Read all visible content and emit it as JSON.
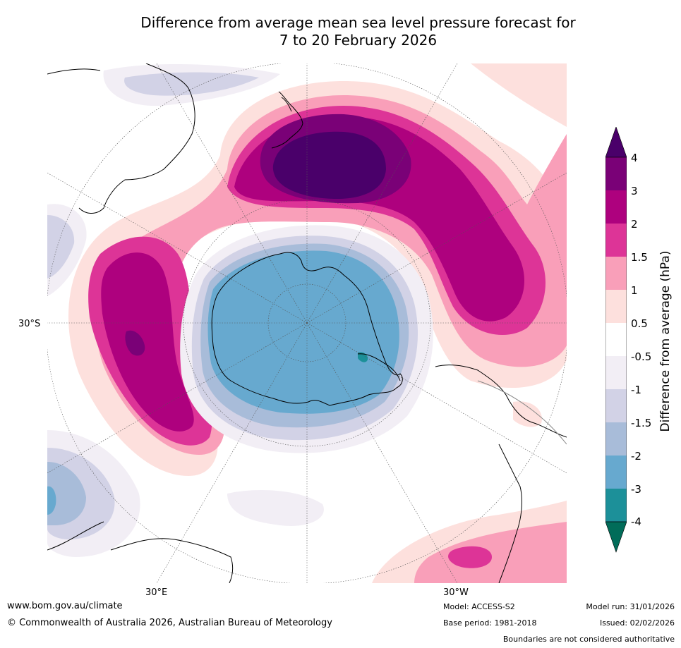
{
  "title": {
    "line1": "Difference from average mean sea level pressure forecast for",
    "line2": "7 to 20 February 2026"
  },
  "map": {
    "projection": "south-polar-stereographic",
    "lat_label": "30°S",
    "lon_labels": {
      "east": "30°E",
      "west": "30°W"
    },
    "regions": [
      {
        "name": "New Zealand high anomaly",
        "level": "above 4 hPa"
      },
      {
        "name": "Indian Ocean high anomaly",
        "level": "2 to 3 hPa"
      },
      {
        "name": "South Pacific high anomaly",
        "level": "2 to 3 hPa"
      },
      {
        "name": "Antarctic low anomaly",
        "level": "-2 to -3 hPa"
      }
    ]
  },
  "colorbar": {
    "title": "Difference from average (hPa)",
    "ticks": [
      "4",
      "3",
      "2",
      "1.5",
      "1",
      "0.5",
      "-0.5",
      "-1",
      "-1.5",
      "-2",
      "-3",
      "-4"
    ],
    "colors": {
      "above_4": "#4a006a",
      "c4": "#7a0177",
      "c3": "#ae017e",
      "c2": "#dd3497",
      "c15": "#f99fb9",
      "c1": "#fde0dd",
      "c05": "#ffffff",
      "cm05": "#f2eef5",
      "cm1": "#d2d2e6",
      "cm15": "#a8bcd9",
      "cm2": "#67a9cf",
      "cm3": "#1c9099",
      "below_m4": "#016c59"
    }
  },
  "footer": {
    "url": "www.bom.gov.au/climate",
    "copyright": "© Commonwealth of Australia 2026, Australian Bureau of Meteorology",
    "model": "Model: ACCESS-S2",
    "base_period": "Base period: 1981-2018",
    "model_run": "Model run: 31/01/2026",
    "issued": "Issued: 02/02/2026",
    "disclaimer": "Boundaries are not considered authoritative"
  }
}
